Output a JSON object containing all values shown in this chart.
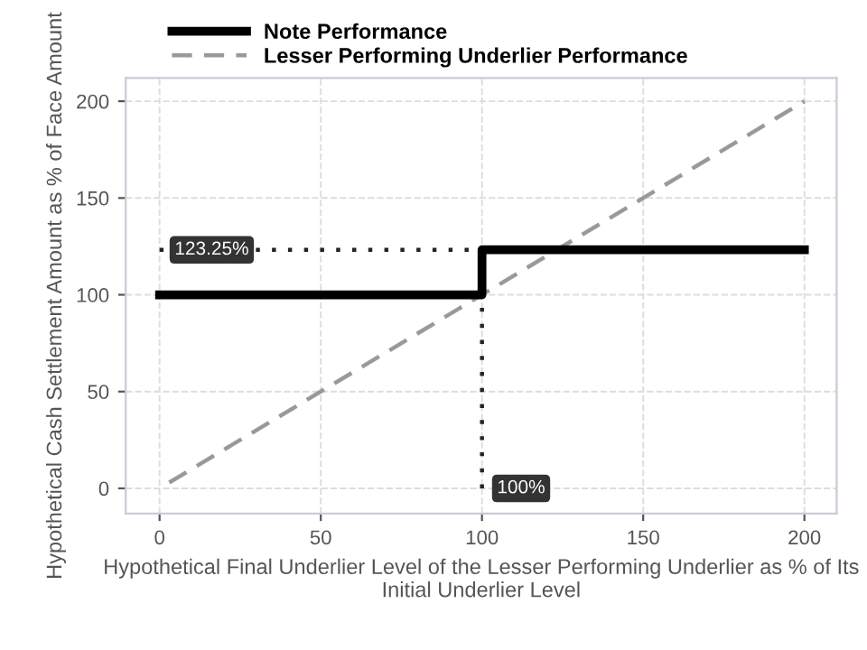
{
  "chart_data": {
    "type": "line",
    "xlabel": "Hypothetical Final Underlier Level of the Lesser Performing Underlier as % of Its Initial Underlier Level",
    "ylabel": "Hypothetical Cash Settlement Amount as % of Face Amount",
    "series": [
      {
        "name": "Note Performance",
        "color": "#000000",
        "x": [
          0,
          100,
          100,
          200
        ],
        "values": [
          100,
          100,
          123.25,
          123.25
        ],
        "line_style": "solid"
      },
      {
        "name": "Lesser Performing Underlier Performance",
        "color": "#999999",
        "x": [
          3,
          200
        ],
        "values": [
          3,
          200
        ],
        "line_style": "dashed"
      },
      {
        "color": "#1f2233",
        "x": [
          0,
          100
        ],
        "values": [
          123.25,
          123.25
        ],
        "line_style": "dotted"
      },
      {
        "color": "#1f2233",
        "x": [
          100,
          100
        ],
        "values": [
          0,
          123.25
        ],
        "line_style": "dotted"
      }
    ],
    "annotations": [
      {
        "text": "123.25%",
        "x": 0,
        "y": 123.25
      },
      {
        "text": "100%",
        "x": 100,
        "y": 0
      }
    ],
    "xlim": [
      -10.5,
      210
    ],
    "ylim": [
      -13,
      212
    ],
    "xticks": [
      0,
      50,
      100,
      150,
      200
    ],
    "yticks": [
      0,
      50,
      100,
      150,
      200
    ],
    "grid": true,
    "legend": "top",
    "marker": "none"
  }
}
